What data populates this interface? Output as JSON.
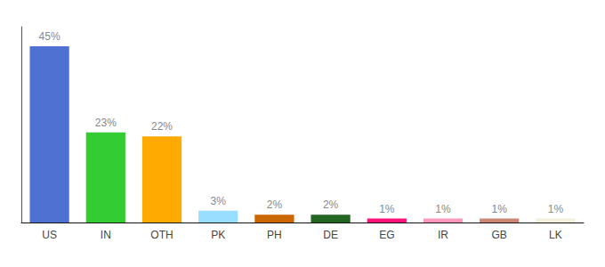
{
  "chart_data": {
    "type": "bar",
    "categories": [
      "US",
      "IN",
      "OTH",
      "PK",
      "PH",
      "DE",
      "EG",
      "IR",
      "GB",
      "LK"
    ],
    "values": [
      45,
      23,
      22,
      3,
      2,
      2,
      1,
      1,
      1,
      1
    ],
    "value_labels": [
      "45%",
      "23%",
      "22%",
      "3%",
      "2%",
      "2%",
      "1%",
      "1%",
      "1%",
      "1%"
    ],
    "colors": [
      "#4d72d1",
      "#33cc33",
      "#ffaa00",
      "#99ddff",
      "#cc6600",
      "#226622",
      "#ff1177",
      "#ff99bb",
      "#cc8877",
      "#f5f0dc"
    ],
    "ylim": [
      0,
      50
    ],
    "data_labels": true,
    "tick_labels": "x",
    "grid": false
  }
}
